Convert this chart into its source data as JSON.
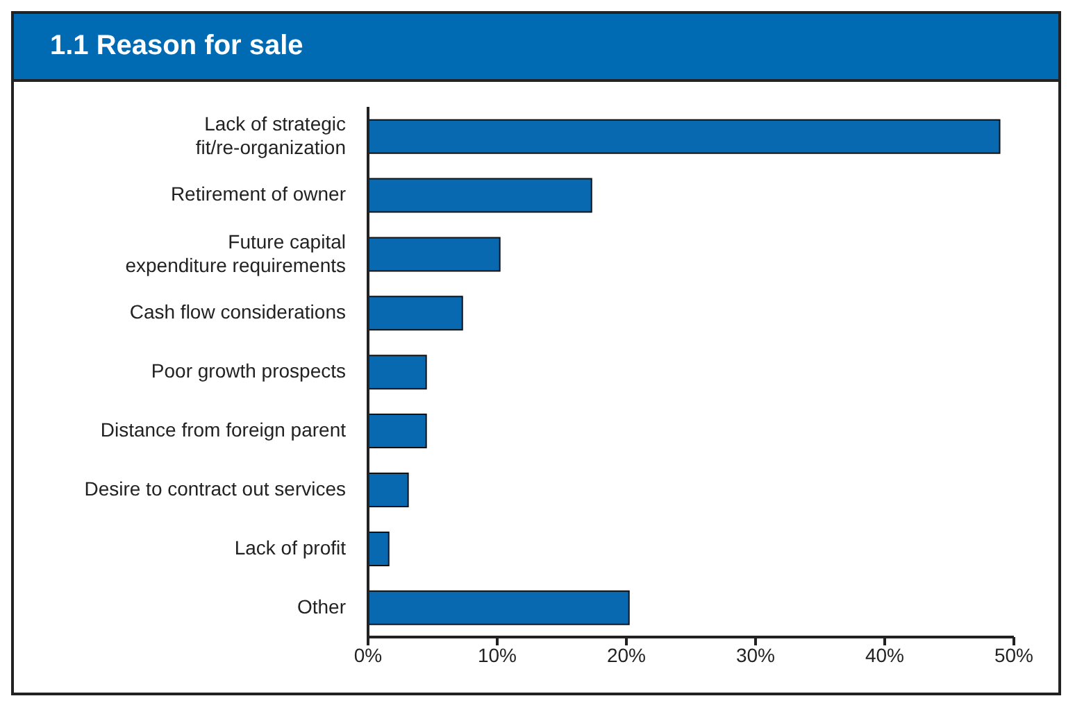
{
  "chart_data": {
    "type": "bar",
    "orientation": "horizontal",
    "title": "1.1  Reason for sale",
    "categories": [
      "Lack of strategic fit/re-organization",
      "Retirement of owner",
      "Future capital expenditure requirements",
      "Cash flow considerations",
      "Poor growth prospects",
      "Distance from foreign parent",
      "Desire to contract out services",
      "Lack of profit",
      "Other"
    ],
    "values": [
      48.9,
      17.3,
      10.2,
      7.3,
      4.5,
      4.5,
      3.1,
      1.6,
      20.2
    ],
    "color": "#0868b0",
    "xlim": [
      0,
      50
    ],
    "xticks": [
      {
        "value": 0,
        "label": "0%"
      },
      {
        "value": 10,
        "label": "10%"
      },
      {
        "value": 20,
        "label": "20%"
      },
      {
        "value": 30,
        "label": "30%"
      },
      {
        "value": 40,
        "label": "40%"
      },
      {
        "value": 50,
        "label": "50%"
      }
    ],
    "grid": false,
    "legend": false
  }
}
